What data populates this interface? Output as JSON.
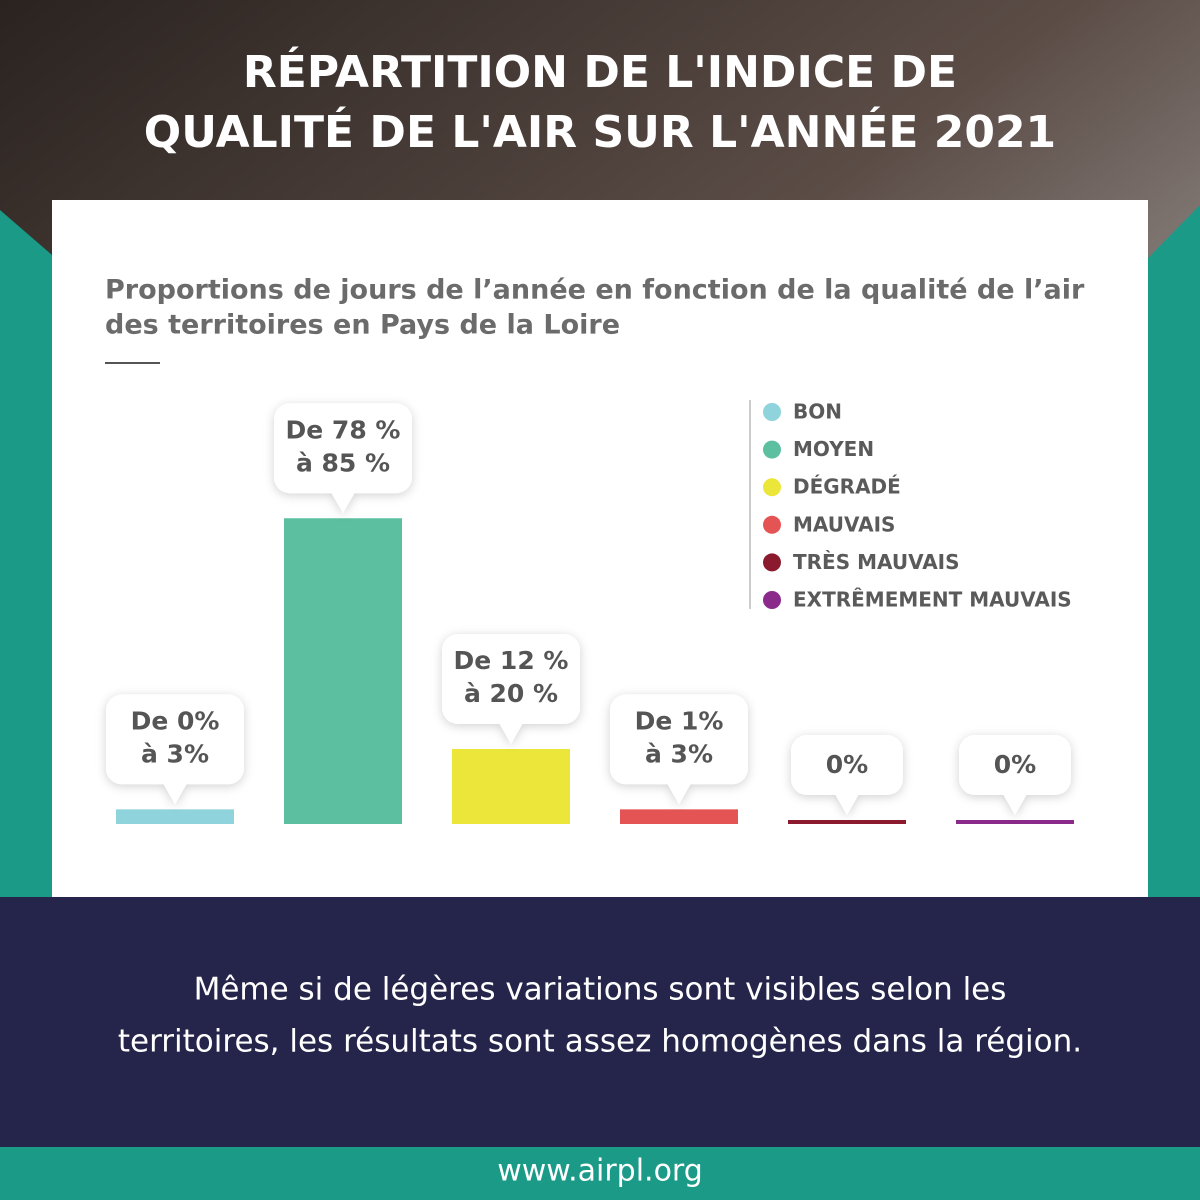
{
  "header": {
    "title": [
      "RÉPARTITION DE L'INDICE DE",
      "QUALITÉ DE L'AIR SUR L'ANNÉE 2021"
    ]
  },
  "chart_data": {
    "type": "bar",
    "subtitle": [
      "Proportions de jours de l’année en fonction de la qualité de l’air",
      "des territoires en Pays de la Loire"
    ],
    "categories": [
      "BON",
      "MOYEN",
      "DÉGRADÉ",
      "MAUVAIS",
      "TRÈS MAUVAIS",
      "EXTRÊMEMENT MAUVAIS"
    ],
    "values": [
      3,
      85,
      20,
      3,
      0,
      0
    ],
    "value_labels": [
      [
        "De 0%",
        "à 3%"
      ],
      [
        "De 78 %",
        "à 85 %"
      ],
      [
        "De 12 %",
        "à 20 %"
      ],
      [
        "De 1%",
        "à 3%"
      ],
      [
        "0%"
      ],
      [
        "0%"
      ]
    ],
    "colors": [
      "#8fd3dc",
      "#5cbfa0",
      "#ece53a",
      "#e45454",
      "#8b1a2e",
      "#8a2a8a"
    ],
    "legend": "top-right"
  },
  "caption": [
    "Même si de légères variations sont visibles selon les",
    "territoires, les résultats sont assez homogènes dans la région."
  ],
  "footer": {
    "url": "www.airpl.org"
  }
}
